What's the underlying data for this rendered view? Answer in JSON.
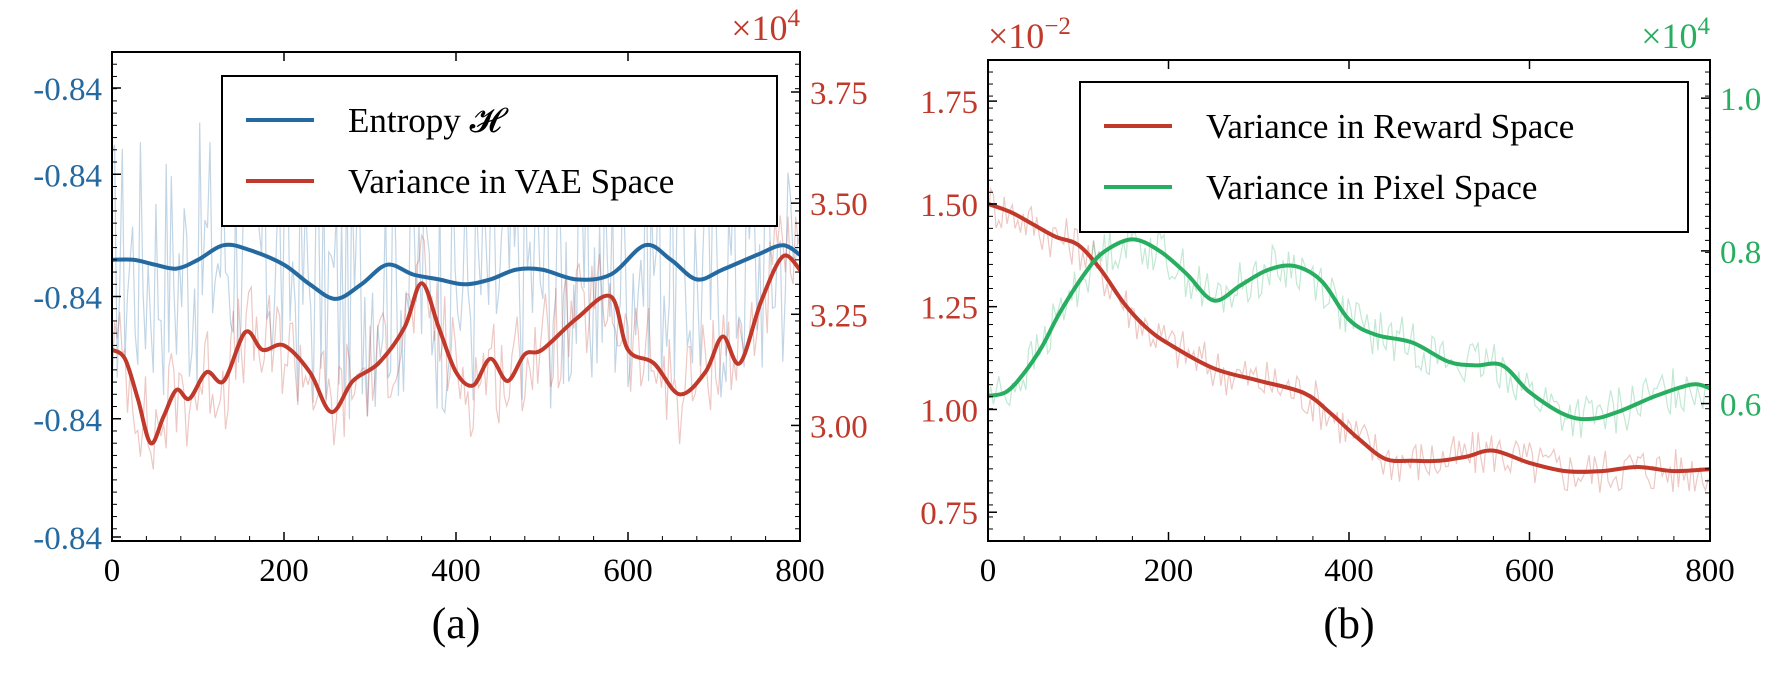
{
  "colors": {
    "blue": "#2469a0",
    "red": "#c0392b",
    "green": "#27ae60",
    "axis": "#000000"
  },
  "chart_data": [
    {
      "type": "line",
      "caption": "(a)",
      "xlim": [
        0,
        800
      ],
      "x_ticks": [
        "0",
        "200",
        "400",
        "600",
        "800"
      ],
      "x_tick_values": [
        0,
        200,
        400,
        600,
        800
      ],
      "left_axis": {
        "ticks": [
          "-0.84",
          "-0.84",
          "-0.84",
          "-0.84",
          "-0.84"
        ],
        "color": "blue"
      },
      "right_axis": {
        "multiplier": "×10",
        "multiplier_exp": "4",
        "ticks": [
          "3.00",
          "3.25",
          "3.50",
          "3.75"
        ],
        "tick_values": [
          3.0,
          3.25,
          3.5,
          3.75
        ],
        "ylim": [
          2.74,
          3.84
        ],
        "color": "red"
      },
      "left_ylim": [
        0,
        1
      ],
      "legend": {
        "position": "top-right",
        "entries": [
          "Entropy 𝓗",
          "Variance in VAE Space"
        ]
      },
      "series": [
        {
          "name": "Entropy 𝓗",
          "axis": "left",
          "color": "blue",
          "x": [
            0,
            25,
            50,
            75,
            100,
            130,
            160,
            200,
            230,
            260,
            290,
            320,
            350,
            380,
            410,
            440,
            470,
            500,
            540,
            580,
            620,
            650,
            680,
            710,
            750,
            780,
            800
          ],
          "y": [
            0.575,
            0.575,
            0.565,
            0.557,
            0.575,
            0.605,
            0.595,
            0.565,
            0.525,
            0.495,
            0.525,
            0.565,
            0.545,
            0.535,
            0.525,
            0.535,
            0.555,
            0.555,
            0.535,
            0.545,
            0.605,
            0.575,
            0.535,
            0.555,
            0.585,
            0.605,
            0.585
          ]
        },
        {
          "name": "Variance in VAE Space",
          "axis": "right",
          "color": "red",
          "x": [
            0,
            15,
            30,
            45,
            60,
            75,
            90,
            110,
            130,
            155,
            175,
            200,
            230,
            255,
            280,
            310,
            340,
            360,
            380,
            400,
            420,
            440,
            460,
            480,
            500,
            540,
            580,
            600,
            630,
            660,
            690,
            710,
            730,
            755,
            780,
            800
          ],
          "y": [
            3.17,
            3.15,
            3.06,
            2.96,
            3.02,
            3.08,
            3.06,
            3.12,
            3.1,
            3.21,
            3.17,
            3.18,
            3.12,
            3.03,
            3.1,
            3.14,
            3.22,
            3.32,
            3.22,
            3.12,
            3.09,
            3.15,
            3.1,
            3.16,
            3.17,
            3.24,
            3.29,
            3.17,
            3.14,
            3.07,
            3.12,
            3.2,
            3.14,
            3.28,
            3.38,
            3.35
          ]
        }
      ]
    },
    {
      "type": "line",
      "caption": "(b)",
      "xlim": [
        0,
        800
      ],
      "x_ticks": [
        "0",
        "200",
        "400",
        "600",
        "800"
      ],
      "x_tick_values": [
        0,
        200,
        400,
        600,
        800
      ],
      "left_axis": {
        "multiplier": "×10",
        "multiplier_exp": "−2",
        "ticks": [
          "0.75",
          "1.00",
          "1.25",
          "1.50",
          "1.75"
        ],
        "tick_values": [
          0.75,
          1.0,
          1.25,
          1.5,
          1.75
        ],
        "ylim": [
          0.68,
          1.85
        ],
        "color": "red"
      },
      "right_axis": {
        "multiplier": "×10",
        "multiplier_exp": "4",
        "ticks": [
          "0.6",
          "0.8",
          "1.0"
        ],
        "tick_values": [
          0.6,
          0.8,
          1.0
        ],
        "ylim": [
          0.42,
          1.05
        ],
        "color": "green"
      },
      "legend": {
        "position": "top-right",
        "entries": [
          "Variance in Reward Space",
          "Variance in Pixel Space"
        ]
      },
      "series": [
        {
          "name": "Variance in Reward Space",
          "axis": "left",
          "color": "red",
          "x": [
            0,
            25,
            50,
            75,
            100,
            125,
            150,
            175,
            200,
            250,
            300,
            350,
            380,
            410,
            440,
            470,
            500,
            530,
            560,
            600,
            640,
            680,
            720,
            760,
            800
          ],
          "y": [
            1.5,
            1.48,
            1.45,
            1.42,
            1.4,
            1.34,
            1.26,
            1.2,
            1.16,
            1.1,
            1.07,
            1.04,
            0.99,
            0.93,
            0.88,
            0.875,
            0.875,
            0.885,
            0.9,
            0.87,
            0.85,
            0.85,
            0.86,
            0.85,
            0.855
          ]
        },
        {
          "name": "Variance in Pixel Space",
          "axis": "right",
          "color": "green",
          "x": [
            0,
            20,
            40,
            60,
            80,
            110,
            130,
            160,
            190,
            220,
            250,
            280,
            310,
            340,
            370,
            400,
            430,
            470,
            510,
            540,
            570,
            600,
            640,
            670,
            700,
            740,
            780,
            800
          ],
          "y": [
            0.61,
            0.615,
            0.64,
            0.675,
            0.72,
            0.775,
            0.8,
            0.815,
            0.8,
            0.77,
            0.735,
            0.755,
            0.775,
            0.78,
            0.76,
            0.71,
            0.69,
            0.68,
            0.655,
            0.65,
            0.65,
            0.615,
            0.585,
            0.58,
            0.59,
            0.61,
            0.625,
            0.62
          ]
        }
      ]
    }
  ]
}
